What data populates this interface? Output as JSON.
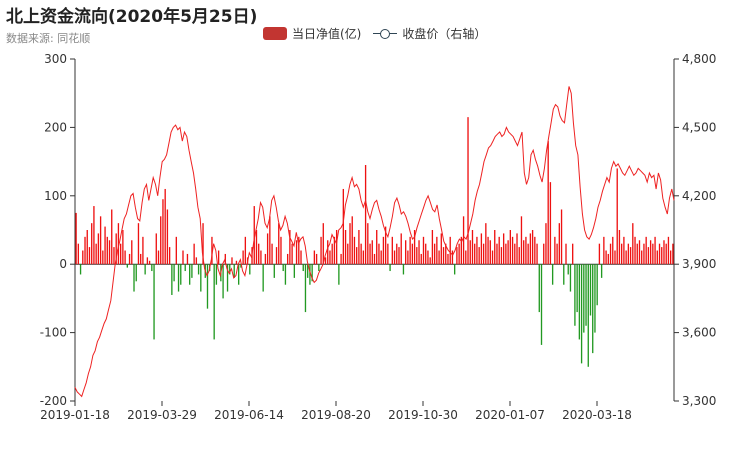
{
  "chart_data": {
    "type": "bar+line",
    "title": "北上资金流向(2020年5月25日)",
    "subtitle": "数据来源: 同花顺",
    "legend": [
      {
        "name": "当日净值(亿)",
        "type": "bar"
      },
      {
        "name": "收盘价（右轴）",
        "type": "line"
      }
    ],
    "left_axis": {
      "min": -200,
      "max": 300,
      "ticks": [
        -200,
        -100,
        0,
        100,
        200,
        300
      ]
    },
    "right_axis": {
      "min": 3300,
      "max": 4800,
      "ticks": [
        "3,300",
        "3,600",
        "3,900",
        "4,200",
        "4,500",
        "4,800"
      ]
    },
    "x_tick_labels": [
      "2019-01-18",
      "2019-03-29",
      "2019-06-14",
      "2019-08-20",
      "2019-10-30",
      "2020-01-07",
      "2020-03-18"
    ],
    "colors": {
      "positive": "#ee1111",
      "negative": "#229922",
      "line": "#ee2222"
    },
    "net_flow": [
      75,
      30,
      -15,
      20,
      40,
      50,
      25,
      60,
      85,
      30,
      45,
      70,
      20,
      55,
      40,
      35,
      80,
      25,
      45,
      60,
      30,
      50,
      20,
      -5,
      15,
      35,
      -40,
      -25,
      60,
      15,
      40,
      -15,
      10,
      5,
      -10,
      -110,
      45,
      20,
      70,
      95,
      110,
      80,
      25,
      -45,
      -25,
      40,
      -40,
      -30,
      20,
      -10,
      15,
      -30,
      -20,
      30,
      10,
      -15,
      -40,
      60,
      -20,
      -65,
      -10,
      40,
      -110,
      -30,
      20,
      -25,
      -50,
      15,
      -40,
      -15,
      10,
      -20,
      5,
      -30,
      -5,
      20,
      40,
      10,
      -15,
      25,
      85,
      50,
      30,
      20,
      -40,
      15,
      45,
      70,
      30,
      -20,
      25,
      60,
      40,
      -10,
      -30,
      15,
      50,
      30,
      -20,
      35,
      40,
      20,
      -10,
      -70,
      -20,
      -30,
      -25,
      20,
      15,
      -10,
      40,
      60,
      10,
      35,
      20,
      30,
      40,
      50,
      -30,
      15,
      110,
      50,
      30,
      60,
      70,
      40,
      25,
      50,
      30,
      20,
      145,
      60,
      30,
      35,
      15,
      50,
      30,
      20,
      40,
      55,
      30,
      -10,
      40,
      20,
      30,
      25,
      45,
      -15,
      35,
      20,
      40,
      30,
      50,
      25,
      35,
      15,
      40,
      30,
      20,
      10,
      50,
      30,
      40,
      20,
      45,
      25,
      30,
      15,
      40,
      20,
      -15,
      25,
      30,
      40,
      70,
      20,
      215,
      35,
      50,
      30,
      40,
      25,
      45,
      30,
      60,
      40,
      35,
      20,
      50,
      30,
      40,
      25,
      45,
      30,
      35,
      50,
      40,
      30,
      45,
      25,
      70,
      35,
      40,
      30,
      45,
      50,
      40,
      30,
      -70,
      -118,
      30,
      60,
      180,
      120,
      -30,
      40,
      30,
      60,
      80,
      -30,
      30,
      -15,
      -40,
      30,
      -90,
      -70,
      -110,
      -145,
      -100,
      -90,
      -150,
      -75,
      -130,
      -100,
      -60,
      30,
      -20,
      40,
      20,
      15,
      30,
      40,
      20,
      140,
      50,
      30,
      40,
      20,
      30,
      25,
      60,
      40,
      30,
      35,
      20,
      30,
      40,
      25,
      35,
      30,
      40,
      20,
      30,
      25,
      35,
      30,
      40,
      20,
      30
    ],
    "close": [
      3360,
      3340,
      3330,
      3320,
      3350,
      3380,
      3420,
      3450,
      3500,
      3520,
      3560,
      3580,
      3610,
      3640,
      3660,
      3700,
      3740,
      3820,
      3900,
      3960,
      4000,
      4050,
      4100,
      4120,
      4160,
      4200,
      4210,
      4150,
      4100,
      4090,
      4170,
      4230,
      4250,
      4180,
      4230,
      4280,
      4250,
      4200,
      4280,
      4350,
      4360,
      4380,
      4430,
      4480,
      4500,
      4510,
      4490,
      4500,
      4440,
      4480,
      4460,
      4400,
      4350,
      4300,
      4230,
      4150,
      4100,
      3950,
      3880,
      3850,
      3870,
      3920,
      3990,
      3960,
      3880,
      3850,
      3900,
      3920,
      3880,
      3860,
      3880,
      3840,
      3850,
      3900,
      3920,
      3870,
      3850,
      3900,
      3950,
      3930,
      4000,
      4050,
      4100,
      4170,
      4150,
      4080,
      4060,
      4100,
      4180,
      4200,
      4150,
      4090,
      4050,
      4070,
      4110,
      4080,
      4020,
      4000,
      3980,
      4040,
      3990,
      4010,
      4020,
      3980,
      3910,
      3870,
      3840,
      3820,
      3830,
      3860,
      3880,
      3900,
      3940,
      3970,
      3990,
      4030,
      4010,
      3990,
      4050,
      4060,
      4080,
      4160,
      4200,
      4250,
      4280,
      4240,
      4250,
      4230,
      4180,
      4150,
      4180,
      4130,
      4100,
      4140,
      4170,
      4180,
      4140,
      4110,
      4070,
      4040,
      4020,
      4060,
      4110,
      4170,
      4190,
      4160,
      4120,
      4130,
      4110,
      4080,
      4040,
      4010,
      4020,
      4060,
      4090,
      4120,
      4150,
      4180,
      4200,
      4170,
      4140,
      4130,
      4160,
      4100,
      4050,
      4000,
      3980,
      3960,
      3950,
      3940,
      3960,
      3990,
      4010,
      4000,
      4020,
      4010,
      4040,
      4080,
      4120,
      4180,
      4220,
      4250,
      4300,
      4350,
      4380,
      4410,
      4420,
      4440,
      4460,
      4470,
      4480,
      4460,
      4470,
      4500,
      4480,
      4470,
      4460,
      4440,
      4420,
      4450,
      4480,
      4300,
      4250,
      4280,
      4380,
      4400,
      4360,
      4330,
      4290,
      4260,
      4320,
      4400,
      4460,
      4520,
      4580,
      4600,
      4590,
      4550,
      4530,
      4520,
      4600,
      4680,
      4650,
      4520,
      4420,
      4380,
      4240,
      4120,
      4050,
      4020,
      4010,
      4030,
      4060,
      4100,
      4150,
      4180,
      4220,
      4250,
      4280,
      4260,
      4320,
      4350,
      4330,
      4340,
      4320,
      4300,
      4290,
      4310,
      4330,
      4310,
      4290,
      4300,
      4320,
      4310,
      4300,
      4290,
      4260,
      4300,
      4280,
      4290,
      4230,
      4300,
      4270,
      4190,
      4150,
      4120,
      4190,
      4230,
      4180
    ]
  }
}
